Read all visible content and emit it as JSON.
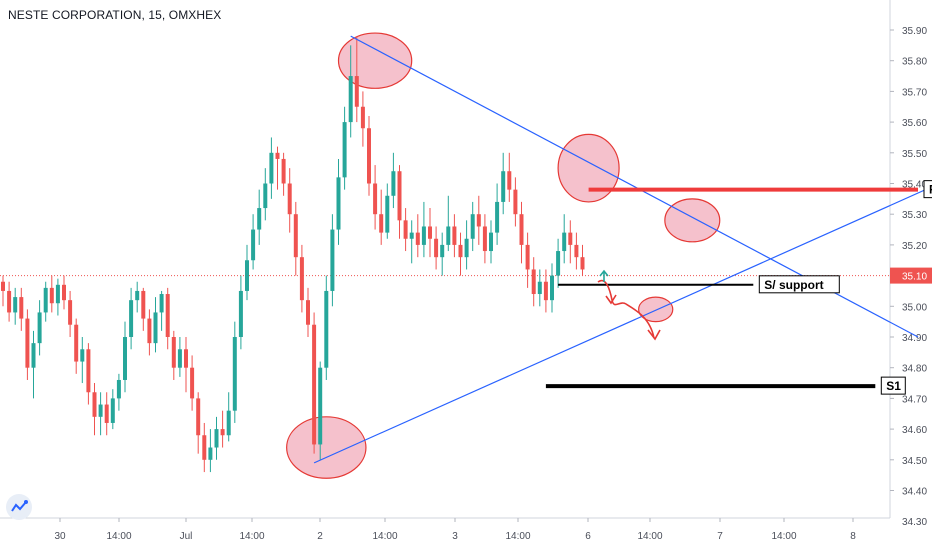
{
  "chart_title": "NESTE CORPORATION, 15, OMXHEX",
  "colors": {
    "up": "#26a69a",
    "down": "#ef5350",
    "trend": "#2962ff",
    "resistance": "#ef3b3b",
    "support": "#000000",
    "circle_fill": "#f0a0b0",
    "circle_stroke": "#e53935",
    "price_tag_bg": "#ef5350",
    "current_line": "#ef5350"
  },
  "chart_data": {
    "type": "candlestick",
    "symbol": "NESTE CORPORATION",
    "interval": "15",
    "exchange": "OMXHEX",
    "ylim": [
      34.3,
      35.95
    ],
    "y_ticks": [
      "35.90",
      "35.80",
      "35.70",
      "35.60",
      "35.50",
      "35.40",
      "35.30",
      "35.20",
      "35.10",
      "35.00",
      "34.90",
      "34.80",
      "34.70",
      "34.60",
      "34.50",
      "34.40",
      "34.30"
    ],
    "x_ticks": [
      "30",
      "14:00",
      "Jul",
      "14:00",
      "2",
      "14:00",
      "3",
      "14:00",
      "6",
      "14:00",
      "7",
      "14:00",
      "8"
    ],
    "current_price": "35.10",
    "candles": [
      [
        35.08,
        35.05,
        35.1,
        35.0
      ],
      [
        35.05,
        34.98,
        35.08,
        34.95
      ],
      [
        34.98,
        35.03,
        35.06,
        34.94
      ],
      [
        35.03,
        34.96,
        35.06,
        34.92
      ],
      [
        34.96,
        34.8,
        34.99,
        34.76
      ],
      [
        34.8,
        34.88,
        34.92,
        34.7
      ],
      [
        34.88,
        34.98,
        35.02,
        34.84
      ],
      [
        34.98,
        35.06,
        35.08,
        34.95
      ],
      [
        35.06,
        35.01,
        35.1,
        34.98
      ],
      [
        35.01,
        35.07,
        35.09,
        34.97
      ],
      [
        35.07,
        35.02,
        35.1,
        34.99
      ],
      [
        35.02,
        34.94,
        35.05,
        34.9
      ],
      [
        34.94,
        34.82,
        34.96,
        34.78
      ],
      [
        34.82,
        34.86,
        34.9,
        34.75
      ],
      [
        34.86,
        34.72,
        34.88,
        34.68
      ],
      [
        34.72,
        34.64,
        34.75,
        34.58
      ],
      [
        34.64,
        34.68,
        34.72,
        34.58
      ],
      [
        34.68,
        34.62,
        34.72,
        34.58
      ],
      [
        34.62,
        34.7,
        34.73,
        34.6
      ],
      [
        34.7,
        34.76,
        34.78,
        34.66
      ],
      [
        34.76,
        34.9,
        34.95,
        34.72
      ],
      [
        34.9,
        35.02,
        35.06,
        34.86
      ],
      [
        35.02,
        35.05,
        35.08,
        34.98
      ],
      [
        35.05,
        34.96,
        35.06,
        34.92
      ],
      [
        34.96,
        34.88,
        34.99,
        34.84
      ],
      [
        34.88,
        34.98,
        35.03,
        34.85
      ],
      [
        34.98,
        35.04,
        35.05,
        34.92
      ],
      [
        35.04,
        34.9,
        35.06,
        34.86
      ],
      [
        34.9,
        34.8,
        34.92,
        34.76
      ],
      [
        34.8,
        34.86,
        34.9,
        34.77
      ],
      [
        34.86,
        34.8,
        34.9,
        34.72
      ],
      [
        34.8,
        34.7,
        34.84,
        34.66
      ],
      [
        34.7,
        34.58,
        34.72,
        34.52
      ],
      [
        34.58,
        34.5,
        34.62,
        34.46
      ],
      [
        34.5,
        34.54,
        34.6,
        34.46
      ],
      [
        34.54,
        34.6,
        34.64,
        34.5
      ],
      [
        34.6,
        34.58,
        34.66,
        34.54
      ],
      [
        34.58,
        34.66,
        34.72,
        34.56
      ],
      [
        34.66,
        34.9,
        34.95,
        34.62
      ],
      [
        34.9,
        35.05,
        35.1,
        34.86
      ],
      [
        35.05,
        35.15,
        35.2,
        35.02
      ],
      [
        35.15,
        35.25,
        35.3,
        35.12
      ],
      [
        35.25,
        35.32,
        35.38,
        35.2
      ],
      [
        35.32,
        35.4,
        35.45,
        35.28
      ],
      [
        35.4,
        35.5,
        35.55,
        35.35
      ],
      [
        35.5,
        35.48,
        35.52,
        35.38
      ],
      [
        35.48,
        35.4,
        35.5,
        35.36
      ],
      [
        35.4,
        35.3,
        35.45,
        35.24
      ],
      [
        35.3,
        35.16,
        35.34,
        35.1
      ],
      [
        35.16,
        35.02,
        35.2,
        34.98
      ],
      [
        35.02,
        34.94,
        35.06,
        34.9
      ],
      [
        34.94,
        34.55,
        34.98,
        34.52
      ],
      [
        34.55,
        34.8,
        34.82,
        34.5
      ],
      [
        34.8,
        35.05,
        35.1,
        34.76
      ],
      [
        35.05,
        35.25,
        35.3,
        35.0
      ],
      [
        35.25,
        35.42,
        35.48,
        35.2
      ],
      [
        35.42,
        35.6,
        35.65,
        35.38
      ],
      [
        35.6,
        35.75,
        35.85,
        35.55
      ],
      [
        35.75,
        35.65,
        35.88,
        35.6
      ],
      [
        35.65,
        35.58,
        35.7,
        35.52
      ],
      [
        35.58,
        35.4,
        35.62,
        35.36
      ],
      [
        35.4,
        35.3,
        35.46,
        35.25
      ],
      [
        35.3,
        35.24,
        35.38,
        35.2
      ],
      [
        35.24,
        35.36,
        35.4,
        35.22
      ],
      [
        35.36,
        35.44,
        35.5,
        35.32
      ],
      [
        35.44,
        35.28,
        35.46,
        35.22
      ],
      [
        35.28,
        35.22,
        35.32,
        35.18
      ],
      [
        35.22,
        35.24,
        35.28,
        35.14
      ],
      [
        35.24,
        35.2,
        35.3,
        35.16
      ],
      [
        35.2,
        35.26,
        35.34,
        35.16
      ],
      [
        35.26,
        35.22,
        35.32,
        35.16
      ],
      [
        35.22,
        35.16,
        35.26,
        35.12
      ],
      [
        35.16,
        35.2,
        35.24,
        35.1
      ],
      [
        35.2,
        35.26,
        35.36,
        35.18
      ],
      [
        35.26,
        35.2,
        35.3,
        35.16
      ],
      [
        35.2,
        35.16,
        35.24,
        35.1
      ],
      [
        35.16,
        35.22,
        35.28,
        35.12
      ],
      [
        35.22,
        35.3,
        35.34,
        35.18
      ],
      [
        35.3,
        35.26,
        35.36,
        35.2
      ],
      [
        35.26,
        35.18,
        35.3,
        35.14
      ],
      [
        35.18,
        35.24,
        35.28,
        35.14
      ],
      [
        35.24,
        35.34,
        35.4,
        35.2
      ],
      [
        35.34,
        35.44,
        35.5,
        35.3
      ],
      [
        35.44,
        35.38,
        35.5,
        35.34
      ],
      [
        35.38,
        35.3,
        35.42,
        35.26
      ],
      [
        35.3,
        35.2,
        35.34,
        35.14
      ],
      [
        35.2,
        35.12,
        35.24,
        35.06
      ],
      [
        35.12,
        35.04,
        35.16,
        35.0
      ],
      [
        35.04,
        35.08,
        35.12,
        35.0
      ],
      [
        35.08,
        35.02,
        35.12,
        34.98
      ],
      [
        35.02,
        35.1,
        35.14,
        34.98
      ],
      [
        35.1,
        35.18,
        35.22,
        35.06
      ],
      [
        35.18,
        35.24,
        35.3,
        35.14
      ],
      [
        35.24,
        35.2,
        35.28,
        35.14
      ],
      [
        35.2,
        35.16,
        35.24,
        35.12
      ],
      [
        35.16,
        35.12,
        35.2,
        35.1
      ]
    ],
    "annotations": [
      {
        "type": "trendline",
        "name": "descending-trendline",
        "from": [
          57,
          35.88
        ],
        "to": [
          150,
          34.9
        ]
      },
      {
        "type": "trendline",
        "name": "ascending-trendline",
        "from": [
          51,
          34.49
        ],
        "to": [
          158,
          35.44
        ]
      },
      {
        "type": "horizontal",
        "name": "resistance-line",
        "label": "R",
        "y": 35.38,
        "x_from": 96,
        "x_to": 150,
        "color": "#ef3b3b"
      },
      {
        "type": "horizontal",
        "name": "support-line",
        "label": "S/ support",
        "y": 35.07,
        "x_from": 91,
        "x_to": 123,
        "color": "#000000"
      },
      {
        "type": "horizontal",
        "name": "s1-line",
        "label": "S1",
        "y": 34.74,
        "x_from": 89,
        "x_to": 143,
        "color": "#000000"
      },
      {
        "type": "circle",
        "name": "peak-circle-high",
        "at": [
          61,
          35.8
        ],
        "rx": 6.0,
        "ry": 0.09
      },
      {
        "type": "circle",
        "name": "peak-circle-mid",
        "at": [
          96,
          35.45
        ],
        "rx": 5.0,
        "ry": 0.11
      },
      {
        "type": "circle",
        "name": "peak-circle-right",
        "at": [
          113,
          35.28
        ],
        "rx": 4.5,
        "ry": 0.07
      },
      {
        "type": "circle",
        "name": "low-circle-bottom",
        "at": [
          53,
          34.54
        ],
        "rx": 6.5,
        "ry": 0.1
      },
      {
        "type": "circle",
        "name": "low-circle-small",
        "at": [
          107,
          34.99
        ],
        "rx": 2.8,
        "ry": 0.04
      }
    ]
  }
}
